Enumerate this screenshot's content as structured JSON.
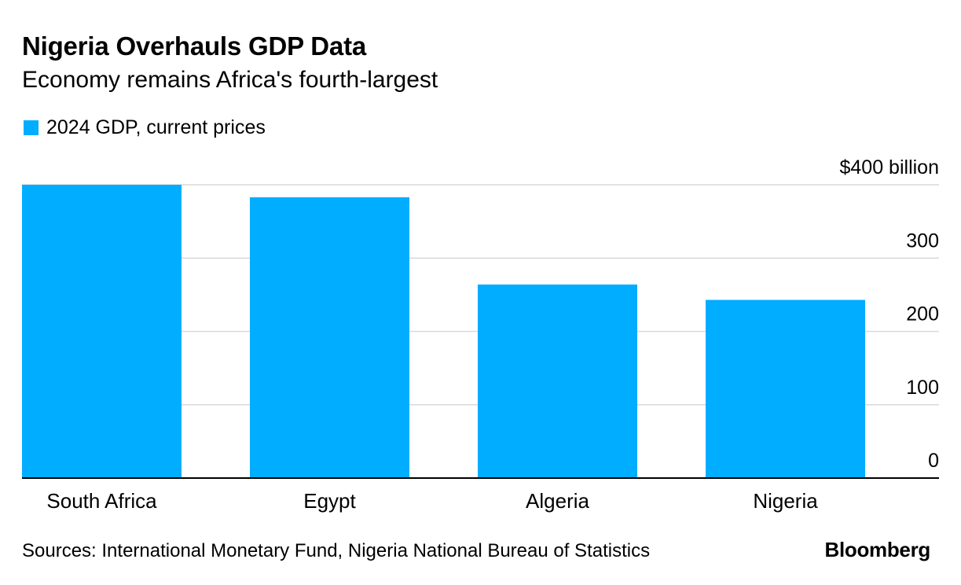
{
  "header": {
    "title": "Nigeria Overhauls GDP Data",
    "subtitle": "Economy remains Africa's fourth-largest"
  },
  "legend": {
    "label": "2024 GDP, current prices",
    "color": "#00adff"
  },
  "chart_data": {
    "type": "bar",
    "title": "Nigeria Overhauls GDP Data",
    "subtitle": "Economy remains Africa's fourth-largest",
    "categories": [
      "South Africa",
      "Egypt",
      "Algeria",
      "Nigeria"
    ],
    "series": [
      {
        "name": "2024 GDP, current prices",
        "values": [
          400,
          383,
          264,
          243
        ],
        "color": "#00adff"
      }
    ],
    "ylim": [
      0,
      400
    ],
    "yticks": [
      0,
      100,
      200,
      300,
      400
    ],
    "ytick_labels": [
      "0",
      "100",
      "200",
      "300",
      "$400 billion"
    ],
    "y_axis_side": "right",
    "grid": true,
    "legend_position": "top-left"
  },
  "footer": {
    "source": "Sources: International Monetary Fund, Nigeria National Bureau of Statistics",
    "brand": "Bloomberg"
  }
}
